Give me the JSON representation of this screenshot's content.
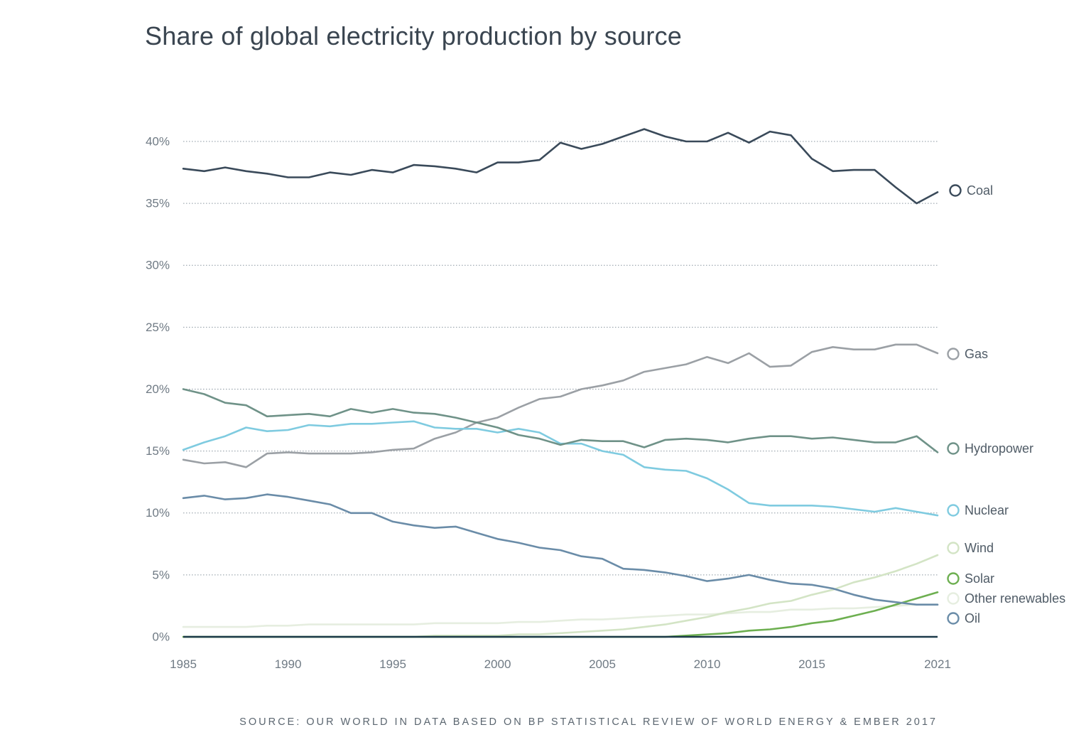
{
  "chart_data": {
    "type": "line",
    "title": "Share of global electricity production by source",
    "source": "SOURCE: OUR WORLD IN DATA BASED ON BP STATISTICAL REVIEW OF WORLD ENERGY & EMBER 2017",
    "xlabel": "",
    "ylabel": "",
    "xlim": [
      1985,
      2021
    ],
    "ylim": [
      0,
      40
    ],
    "x_ticks": [
      1985,
      1990,
      1995,
      2000,
      2005,
      2010,
      2015,
      2021
    ],
    "y_ticks": [
      0,
      5,
      10,
      15,
      20,
      25,
      30,
      35,
      40
    ],
    "y_tick_labels": [
      "0%",
      "5%",
      "10%",
      "15%",
      "20%",
      "25%",
      "30%",
      "35%",
      "40%"
    ],
    "grid": true,
    "legend": "right",
    "x": [
      1985,
      1986,
      1987,
      1988,
      1989,
      1990,
      1991,
      1992,
      1993,
      1994,
      1995,
      1996,
      1997,
      1998,
      1999,
      2000,
      2001,
      2002,
      2003,
      2004,
      2005,
      2006,
      2007,
      2008,
      2009,
      2010,
      2011,
      2012,
      2013,
      2014,
      2015,
      2016,
      2017,
      2018,
      2019,
      2020,
      2021
    ],
    "series": [
      {
        "name": "Coal",
        "color": "#3a4a5a",
        "values": [
          37.8,
          37.6,
          37.9,
          37.6,
          37.4,
          37.1,
          37.1,
          37.5,
          37.3,
          37.7,
          37.5,
          38.1,
          38.0,
          37.8,
          37.5,
          38.3,
          38.3,
          38.5,
          39.9,
          39.4,
          39.8,
          40.4,
          41.0,
          40.4,
          40.0,
          40.0,
          40.7,
          39.9,
          40.8,
          40.5,
          38.6,
          37.6,
          37.7,
          37.7,
          36.3,
          35.0,
          35.9
        ]
      },
      {
        "name": "Gas",
        "color": "#9ba0a5",
        "values": [
          14.3,
          14.0,
          14.1,
          13.7,
          14.8,
          14.9,
          14.8,
          14.8,
          14.8,
          14.9,
          15.1,
          15.2,
          16.0,
          16.5,
          17.3,
          17.7,
          18.5,
          19.2,
          19.4,
          20.0,
          20.3,
          20.7,
          21.4,
          21.7,
          22.0,
          22.6,
          22.1,
          22.9,
          21.8,
          21.9,
          23.0,
          23.4,
          23.2,
          23.2,
          23.6,
          23.6,
          22.9
        ]
      },
      {
        "name": "Hydropower",
        "color": "#6f9288",
        "values": [
          20.0,
          19.6,
          18.9,
          18.7,
          17.8,
          17.9,
          18.0,
          17.8,
          18.4,
          18.1,
          18.4,
          18.1,
          18.0,
          17.7,
          17.3,
          16.9,
          16.3,
          16.0,
          15.5,
          15.9,
          15.8,
          15.8,
          15.3,
          15.9,
          16.0,
          15.9,
          15.7,
          16.0,
          16.2,
          16.2,
          16.0,
          16.1,
          15.9,
          15.7,
          15.7,
          16.2,
          14.9
        ]
      },
      {
        "name": "Nuclear",
        "color": "#7fcbe0",
        "values": [
          15.1,
          15.7,
          16.2,
          16.9,
          16.6,
          16.7,
          17.1,
          17.0,
          17.2,
          17.2,
          17.3,
          17.4,
          16.9,
          16.8,
          16.8,
          16.5,
          16.8,
          16.5,
          15.6,
          15.6,
          15.0,
          14.7,
          13.7,
          13.5,
          13.4,
          12.8,
          11.9,
          10.8,
          10.6,
          10.6,
          10.6,
          10.5,
          10.3,
          10.1,
          10.4,
          10.1,
          9.8
        ]
      },
      {
        "name": "Wind",
        "color": "#d3e4c5",
        "values": [
          0.0,
          0.0,
          0.0,
          0.0,
          0.0,
          0.0,
          0.0,
          0.0,
          0.0,
          0.0,
          0.0,
          0.0,
          0.1,
          0.1,
          0.1,
          0.1,
          0.2,
          0.2,
          0.3,
          0.4,
          0.5,
          0.6,
          0.8,
          1.0,
          1.3,
          1.6,
          2.0,
          2.3,
          2.7,
          2.9,
          3.4,
          3.8,
          4.4,
          4.8,
          5.3,
          5.9,
          6.6
        ]
      },
      {
        "name": "Solar",
        "color": "#6daf50",
        "values": [
          0.0,
          0.0,
          0.0,
          0.0,
          0.0,
          0.0,
          0.0,
          0.0,
          0.0,
          0.0,
          0.0,
          0.0,
          0.0,
          0.0,
          0.0,
          0.0,
          0.0,
          0.0,
          0.0,
          0.0,
          0.0,
          0.0,
          0.0,
          0.0,
          0.1,
          0.2,
          0.3,
          0.5,
          0.6,
          0.8,
          1.1,
          1.3,
          1.7,
          2.1,
          2.6,
          3.1,
          3.6
        ]
      },
      {
        "name": "Other renewables",
        "color": "#e6eee0",
        "values": [
          0.8,
          0.8,
          0.8,
          0.8,
          0.9,
          0.9,
          1.0,
          1.0,
          1.0,
          1.0,
          1.0,
          1.0,
          1.1,
          1.1,
          1.1,
          1.1,
          1.2,
          1.2,
          1.3,
          1.4,
          1.4,
          1.5,
          1.6,
          1.7,
          1.8,
          1.8,
          1.9,
          2.0,
          2.0,
          2.2,
          2.2,
          2.3,
          2.3,
          2.4,
          2.5,
          2.6,
          2.6
        ]
      },
      {
        "name": "Oil",
        "color": "#6a8ca8",
        "values": [
          11.2,
          11.4,
          11.1,
          11.2,
          11.5,
          11.3,
          11.0,
          10.7,
          10.0,
          10.0,
          9.3,
          9.0,
          8.8,
          8.9,
          8.4,
          7.9,
          7.6,
          7.2,
          7.0,
          6.5,
          6.3,
          5.5,
          5.4,
          5.2,
          4.9,
          4.5,
          4.7,
          5.0,
          4.6,
          4.3,
          4.2,
          3.9,
          3.4,
          3.0,
          2.8,
          2.6,
          2.6
        ]
      }
    ],
    "legend_labels": [
      "Coal",
      "Gas",
      "Hydropower",
      "Nuclear",
      "Wind",
      "Solar",
      "Other renewables",
      "Oil"
    ]
  },
  "baseline_color": "#1d3a4a",
  "grid_color": "#8a96a0"
}
